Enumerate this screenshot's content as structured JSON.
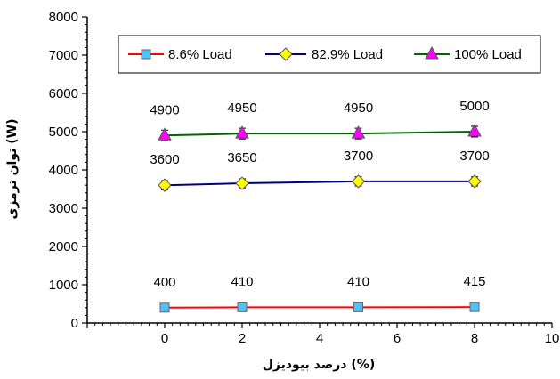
{
  "chart_data": {
    "type": "line",
    "title": "",
    "xlabel": "درصد بیودیزل (%)",
    "ylabel": "توان ترمزی (W)",
    "xlim": [
      -2,
      10
    ],
    "ylim": [
      0,
      8000
    ],
    "x_ticks": [
      0,
      2,
      4,
      6,
      8,
      10
    ],
    "y_ticks": [
      0,
      1000,
      2000,
      3000,
      4000,
      5000,
      6000,
      7000,
      8000
    ],
    "grid": false,
    "legend_position": "top",
    "x": [
      0,
      2,
      5,
      8
    ],
    "series": [
      {
        "name": "8.6% Load",
        "values": [
          400,
          410,
          410,
          415
        ],
        "labels": [
          "400",
          "410",
          "410",
          "415"
        ],
        "line_color": "#ff0000",
        "marker": "square",
        "marker_color": "#4fc3f7",
        "error": 70
      },
      {
        "name": "82.9% Load",
        "values": [
          3600,
          3650,
          3700,
          3700
        ],
        "labels": [
          "3600",
          "3650",
          "3700",
          "3700"
        ],
        "line_color": "#000080",
        "marker": "diamond",
        "marker_color": "#ffff00",
        "error": 120
      },
      {
        "name": "100% Load",
        "values": [
          4900,
          4950,
          4950,
          5000
        ],
        "labels": [
          "4900",
          "4950",
          "4950",
          "5000"
        ],
        "line_color": "#006400",
        "marker": "triangle",
        "marker_color": "#ff00ff",
        "error": 140
      }
    ]
  }
}
